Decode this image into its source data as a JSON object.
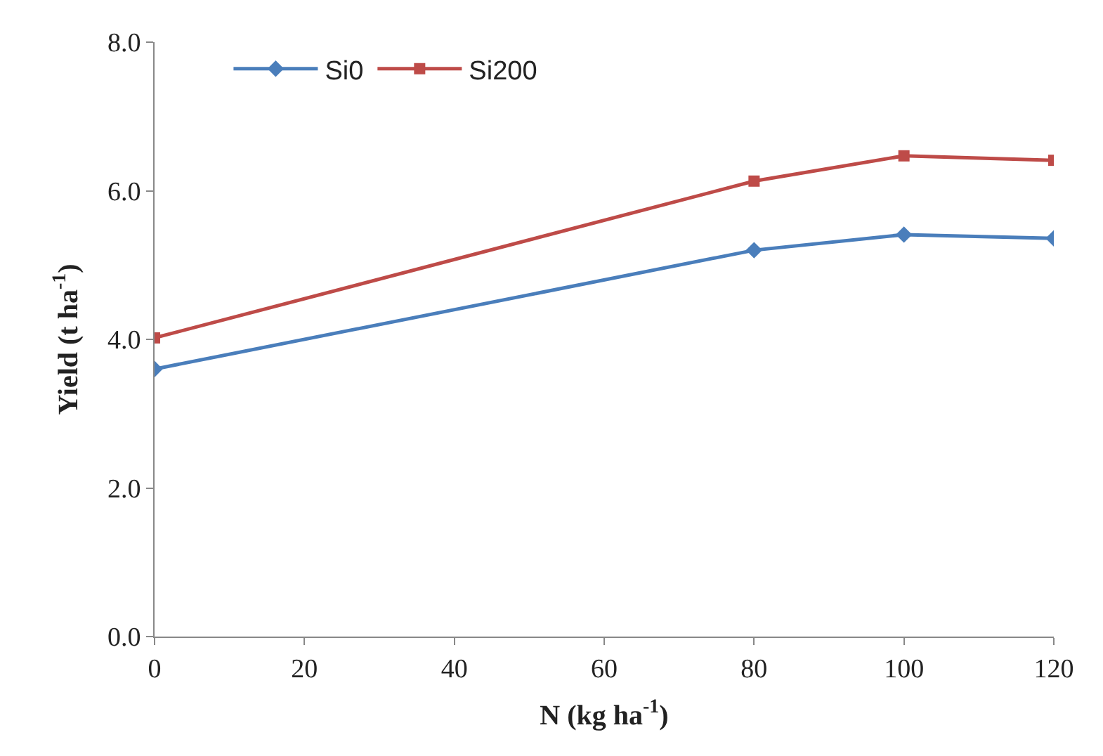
{
  "chart_data": {
    "type": "line",
    "xlabel": "N (kg ha$^{-1}$)",
    "ylabel": "Yield (t ha$^{-1}$)",
    "x": [
      0,
      80,
      100,
      120
    ],
    "series": [
      {
        "name": "Si0",
        "color": "#4a7ebb",
        "marker": "diamond",
        "values": [
          3.6,
          5.2,
          5.41,
          5.36
        ]
      },
      {
        "name": "Si200",
        "color": "#be4b48",
        "marker": "square",
        "values": [
          4.02,
          6.13,
          6.47,
          6.41
        ]
      }
    ],
    "xlim": [
      0,
      120
    ],
    "xticks": [
      0,
      20,
      40,
      60,
      80,
      100,
      120
    ],
    "ylim": [
      0,
      8
    ],
    "yticks": [
      {
        "value": 0,
        "label": "0.0"
      },
      {
        "value": 2,
        "label": "2.0"
      },
      {
        "value": 4,
        "label": "4.0"
      },
      {
        "value": 6,
        "label": "6.0"
      },
      {
        "value": 8,
        "label": "8.0"
      }
    ],
    "legend": "top left",
    "line_style": "solid"
  }
}
